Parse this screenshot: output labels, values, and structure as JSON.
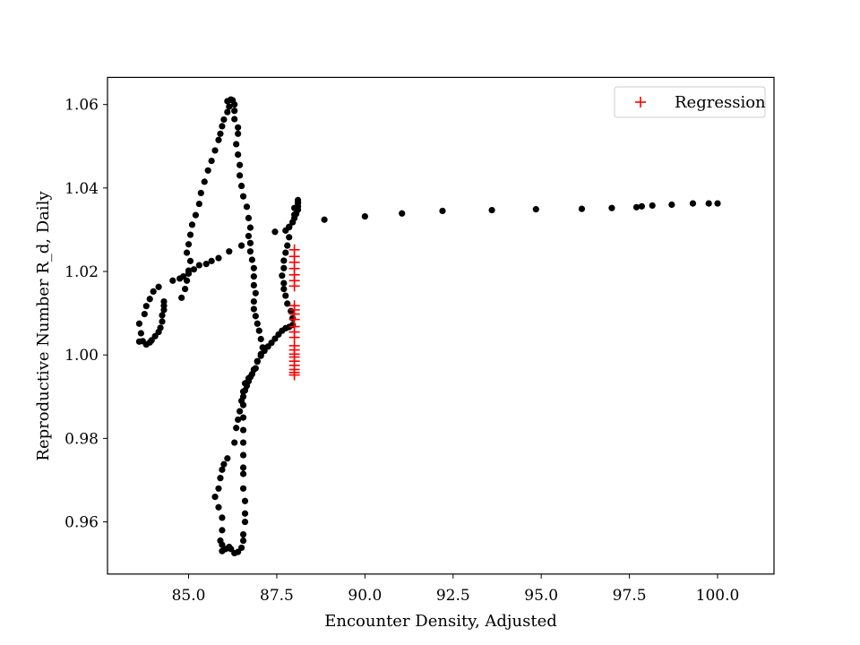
{
  "chart_data": {
    "type": "scatter",
    "title": "",
    "xlabel": "Encounter Density, Adjusted",
    "ylabel": "Reproductive Number R_d, Daily",
    "xlim": [
      82.7,
      101.6
    ],
    "ylim": [
      0.9475,
      1.0665
    ],
    "xticks": [
      85.0,
      87.5,
      90.0,
      92.5,
      95.0,
      97.5,
      100.0
    ],
    "xtick_labels": [
      "85.0",
      "87.5",
      "90.0",
      "92.5",
      "95.0",
      "97.5",
      "100.0"
    ],
    "yticks": [
      0.96,
      0.98,
      1.0,
      1.02,
      1.04,
      1.06
    ],
    "ytick_labels": [
      "0.96",
      "0.98",
      "1.00",
      "1.02",
      "1.04",
      "1.06"
    ],
    "grid": false,
    "legend": {
      "position": "top-right",
      "entries": [
        "Regression"
      ]
    },
    "series": [
      {
        "marker": "circle",
        "color": "#000000",
        "points": [
          [
            100.0,
            1.0363
          ],
          [
            99.75,
            1.0363
          ],
          [
            99.3,
            1.0363
          ],
          [
            98.7,
            1.036
          ],
          [
            98.15,
            1.0358
          ],
          [
            97.85,
            1.0356
          ],
          [
            97.7,
            1.0354
          ],
          [
            97.0,
            1.0352
          ],
          [
            96.15,
            1.035
          ],
          [
            94.85,
            1.0349
          ],
          [
            93.6,
            1.0347
          ],
          [
            92.2,
            1.0345
          ],
          [
            91.05,
            1.0339
          ],
          [
            90.0,
            1.0332
          ],
          [
            88.85,
            1.0324
          ],
          [
            88.1,
            1.0371
          ],
          [
            88.1,
            1.0364
          ],
          [
            88.1,
            1.0356
          ],
          [
            88.1,
            1.0348
          ],
          [
            88.05,
            1.0338
          ],
          [
            88.0,
            1.0328
          ],
          [
            87.95,
            1.0318
          ],
          [
            87.85,
            1.0307
          ],
          [
            87.75,
            1.0298
          ],
          [
            87.85,
            1.0282
          ],
          [
            87.8,
            1.0262
          ],
          [
            87.75,
            1.0245
          ],
          [
            87.7,
            1.0226
          ],
          [
            87.7,
            1.0208
          ],
          [
            87.65,
            1.019
          ],
          [
            87.7,
            1.0172
          ],
          [
            87.7,
            1.0158
          ],
          [
            87.75,
            1.0142
          ],
          [
            87.8,
            1.0123
          ],
          [
            87.9,
            1.0105
          ],
          [
            87.95,
            1.0088
          ],
          [
            87.95,
            1.0072
          ],
          [
            87.85,
            1.0067
          ],
          [
            87.75,
            1.0064
          ],
          [
            87.65,
            1.0058
          ],
          [
            87.55,
            1.0049
          ],
          [
            87.45,
            1.0039
          ],
          [
            87.35,
            1.0029
          ],
          [
            87.25,
            1.002
          ],
          [
            87.15,
            1.001
          ],
          [
            87.05,
            0.9998
          ],
          [
            86.95,
            0.9985
          ],
          [
            86.85,
            0.9965
          ],
          [
            86.75,
            0.9947
          ],
          [
            86.7,
            0.9937
          ],
          [
            86.65,
            0.9926
          ],
          [
            86.6,
            0.9915
          ],
          [
            86.55,
            0.99
          ],
          [
            86.55,
            0.988
          ],
          [
            86.55,
            0.985
          ],
          [
            86.55,
            0.982
          ],
          [
            86.55,
            0.979
          ],
          [
            86.55,
            0.976
          ],
          [
            86.55,
            0.973
          ],
          [
            86.55,
            0.9715
          ],
          [
            86.55,
            0.968
          ],
          [
            86.6,
            0.965
          ],
          [
            86.6,
            0.962
          ],
          [
            86.6,
            0.96
          ],
          [
            86.55,
            0.957
          ],
          [
            86.55,
            0.9555
          ],
          [
            86.5,
            0.9538
          ],
          [
            86.4,
            0.9528
          ],
          [
            86.3,
            0.9525
          ],
          [
            86.2,
            0.9535
          ],
          [
            86.15,
            0.954
          ],
          [
            86.05,
            0.9535
          ],
          [
            85.95,
            0.953
          ],
          [
            85.95,
            0.9545
          ],
          [
            85.9,
            0.9555
          ],
          [
            85.95,
            0.958
          ],
          [
            85.95,
            0.961
          ],
          [
            85.85,
            0.9635
          ],
          [
            85.75,
            0.966
          ],
          [
            85.85,
            0.968
          ],
          [
            85.9,
            0.9705
          ],
          [
            85.95,
            0.9725
          ],
          [
            86.0,
            0.9738
          ],
          [
            86.1,
            0.9752
          ],
          [
            86.3,
            0.979
          ],
          [
            86.35,
            0.9825
          ],
          [
            86.4,
            0.9845
          ],
          [
            86.45,
            0.9865
          ],
          [
            86.5,
            0.989
          ],
          [
            86.55,
            0.9912
          ],
          [
            86.6,
            0.9932
          ],
          [
            86.7,
            0.9944
          ],
          [
            86.8,
            0.9954
          ],
          [
            86.9,
            0.9968
          ],
          [
            86.95,
            0.9984
          ],
          [
            87.05,
            1.0002
          ],
          [
            87.1,
            1.0018
          ],
          [
            87.05,
            1.0038
          ],
          [
            87.0,
            1.0058
          ],
          [
            86.95,
            1.0075
          ],
          [
            86.9,
            1.0093
          ],
          [
            86.85,
            1.011
          ],
          [
            86.85,
            1.0128
          ],
          [
            86.9,
            1.0148
          ],
          [
            86.85,
            1.0167
          ],
          [
            86.85,
            1.0188
          ],
          [
            86.85,
            1.0208
          ],
          [
            86.8,
            1.0228
          ],
          [
            86.75,
            1.0248
          ],
          [
            86.75,
            1.0268
          ],
          [
            86.7,
            1.0285
          ],
          [
            86.75,
            1.0305
          ],
          [
            86.7,
            1.0328
          ],
          [
            86.65,
            1.0355
          ],
          [
            86.55,
            1.038
          ],
          [
            86.5,
            1.0405
          ],
          [
            86.45,
            1.043
          ],
          [
            86.45,
            1.0455
          ],
          [
            86.4,
            1.048
          ],
          [
            86.35,
            1.0505
          ],
          [
            86.4,
            1.053
          ],
          [
            86.4,
            1.0545
          ],
          [
            86.3,
            1.0565
          ],
          [
            86.3,
            1.0585
          ],
          [
            86.3,
            1.06
          ],
          [
            86.25,
            1.061
          ],
          [
            86.2,
            1.0612
          ],
          [
            86.1,
            1.0608
          ],
          [
            86.15,
            1.0595
          ],
          [
            86.1,
            1.0582
          ],
          [
            86.0,
            1.0564
          ],
          [
            85.95,
            1.0548
          ],
          [
            85.9,
            1.053
          ],
          [
            85.85,
            1.0515
          ],
          [
            85.75,
            1.049
          ],
          [
            85.65,
            1.0465
          ],
          [
            85.55,
            1.0442
          ],
          [
            85.45,
            1.0415
          ],
          [
            85.35,
            1.0388
          ],
          [
            85.3,
            1.0362
          ],
          [
            85.2,
            1.0335
          ],
          [
            85.1,
            1.0312
          ],
          [
            85.05,
            1.0288
          ],
          [
            85.0,
            1.0265
          ],
          [
            84.95,
            1.0245
          ],
          [
            85.05,
            1.0225
          ],
          [
            85.0,
            1.0202
          ],
          [
            84.95,
            1.0178
          ],
          [
            84.9,
            1.0158
          ],
          [
            84.8,
            1.0137
          ],
          [
            84.3,
            1.0128
          ],
          [
            84.3,
            1.0118
          ],
          [
            84.3,
            1.0108
          ],
          [
            84.25,
            1.0095
          ],
          [
            84.25,
            1.008
          ],
          [
            84.2,
            1.0065
          ],
          [
            84.15,
            1.0055
          ],
          [
            84.05,
            1.0045
          ],
          [
            83.95,
            1.0035
          ],
          [
            83.9,
            1.003
          ],
          [
            83.8,
            1.0025
          ],
          [
            83.7,
            1.0033
          ],
          [
            83.6,
            1.0032
          ],
          [
            83.65,
            1.0052
          ],
          [
            83.6,
            1.0075
          ],
          [
            83.75,
            1.0098
          ],
          [
            83.8,
            1.0117
          ],
          [
            83.9,
            1.0134
          ],
          [
            84.0,
            1.0152
          ],
          [
            84.15,
            1.0163
          ],
          [
            84.55,
            1.0178
          ],
          [
            84.75,
            1.0183
          ],
          [
            84.85,
            1.0188
          ],
          [
            85.0,
            1.0195
          ],
          [
            85.15,
            1.0205
          ],
          [
            85.3,
            1.0215
          ],
          [
            85.5,
            1.0218
          ],
          [
            85.65,
            1.0225
          ],
          [
            85.85,
            1.0232
          ],
          [
            86.15,
            1.0248
          ],
          [
            86.5,
            1.0262
          ],
          [
            87.45,
            1.0295
          ],
          [
            87.85,
            1.0306
          ],
          [
            87.95,
            1.0318
          ],
          [
            88.0,
            1.0336
          ],
          [
            88.0,
            1.0352
          ],
          [
            88.1,
            1.0365
          ]
        ]
      },
      {
        "name": "Regression",
        "marker": "plus",
        "color": "#ff0000",
        "points": [
          [
            88.0,
            1.0252
          ],
          [
            88.0,
            1.0236
          ],
          [
            88.0,
            1.0222
          ],
          [
            88.0,
            1.0207
          ],
          [
            88.0,
            1.0192
          ],
          [
            88.0,
            1.0178
          ],
          [
            88.0,
            1.0165
          ],
          [
            88.0,
            1.0118
          ],
          [
            88.0,
            1.0108
          ],
          [
            88.0,
            1.0098
          ],
          [
            88.0,
            1.0085
          ],
          [
            88.0,
            1.0068
          ],
          [
            88.0,
            1.0055
          ],
          [
            88.0,
            1.0042
          ],
          [
            88.0,
            1.0022
          ],
          [
            88.0,
            1.0012
          ],
          [
            88.0,
            1.0002
          ],
          [
            88.0,
            0.9995
          ],
          [
            88.0,
            0.9985
          ],
          [
            88.0,
            0.9975
          ],
          [
            88.0,
            0.9965
          ],
          [
            88.0,
            0.9958
          ],
          [
            88.0,
            0.9952
          ]
        ]
      }
    ]
  }
}
